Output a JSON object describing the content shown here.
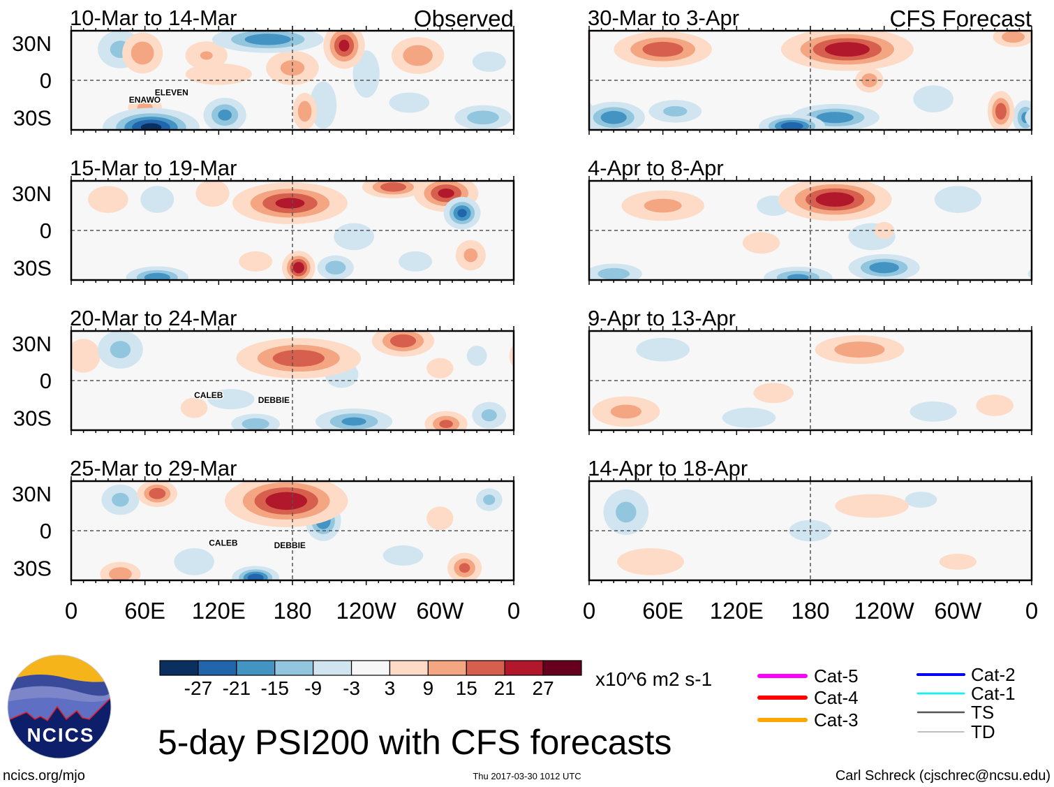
{
  "chart_data": {
    "type": "heatmap",
    "title": "5-day PSI200 with CFS forecasts",
    "units": "x10^6 m2 s-1",
    "column_headers": [
      "Observed",
      "CFS Forecast"
    ],
    "x_ticks": [
      "0",
      "60E",
      "120E",
      "180",
      "120W",
      "60W",
      "0"
    ],
    "y_ticks": [
      "30N",
      "0",
      "30S"
    ],
    "lon_range": [
      0,
      360
    ],
    "lat_range": [
      -40,
      40
    ],
    "colorbar": {
      "labels": [
        "-27",
        "-21",
        "-15",
        "-9",
        "-3",
        "3",
        "9",
        "15",
        "21",
        "27"
      ],
      "colors": [
        "#0b305f",
        "#2166ac",
        "#4393c3",
        "#92c5de",
        "#d1e5f0",
        "#f7f7f7",
        "#fddbc7",
        "#f4a582",
        "#d6604d",
        "#b2182b",
        "#67001f"
      ]
    },
    "panels": [
      {
        "title": "10-Mar to 14-Mar",
        "column": 0,
        "row": 0,
        "storms": [
          {
            "name": "ELEVEN",
            "lon": 68,
            "lat": -12
          },
          {
            "name": "ENAWO",
            "lon": 47,
            "lat": -18
          }
        ],
        "anomalies": [
          [
            40,
            25,
            -12,
            12,
            10
          ],
          [
            58,
            22,
            15,
            10,
            10
          ],
          [
            110,
            20,
            10,
            12,
            8
          ],
          [
            160,
            33,
            -21,
            25,
            6
          ],
          [
            180,
            10,
            12,
            14,
            9
          ],
          [
            222,
            28,
            24,
            9,
            10
          ],
          [
            240,
            5,
            -9,
            8,
            14
          ],
          [
            282,
            20,
            15,
            13,
            9
          ],
          [
            340,
            15,
            -9,
            10,
            6
          ],
          [
            65,
            -38,
            -30,
            20,
            8
          ],
          [
            125,
            -28,
            -18,
            10,
            8
          ],
          [
            60,
            -22,
            12,
            9,
            6
          ],
          [
            190,
            -25,
            15,
            6,
            9
          ],
          [
            205,
            -20,
            -9,
            8,
            14
          ],
          [
            335,
            -30,
            -15,
            14,
            6
          ],
          [
            275,
            -18,
            -9,
            12,
            6
          ],
          [
            120,
            5,
            6,
            25,
            8
          ]
        ]
      },
      {
        "title": "15-Mar to 19-Mar",
        "column": 0,
        "row": 1,
        "storms": [],
        "anomalies": [
          [
            30,
            25,
            9,
            12,
            8
          ],
          [
            70,
            25,
            -9,
            10,
            8
          ],
          [
            178,
            22,
            24,
            25,
            9
          ],
          [
            262,
            35,
            21,
            14,
            5
          ],
          [
            305,
            30,
            24,
            14,
            8
          ],
          [
            318,
            14,
            -24,
            8,
            7
          ],
          [
            230,
            -5,
            -9,
            12,
            8
          ],
          [
            185,
            -30,
            27,
            7,
            7
          ],
          [
            215,
            -30,
            -15,
            9,
            6
          ],
          [
            70,
            -38,
            -21,
            14,
            5
          ],
          [
            150,
            -25,
            9,
            10,
            6
          ],
          [
            280,
            -25,
            -9,
            10,
            6
          ],
          [
            325,
            -20,
            12,
            8,
            8
          ],
          [
            115,
            30,
            9,
            10,
            8
          ]
        ]
      },
      {
        "title": "20-Mar to 24-Mar",
        "column": 0,
        "row": 2,
        "storms": [
          {
            "name": "CALEB",
            "lon": 100,
            "lat": -14
          },
          {
            "name": "DEBBIE",
            "lon": 152,
            "lat": -18
          }
        ],
        "anomalies": [
          [
            10,
            20,
            9,
            10,
            10
          ],
          [
            40,
            25,
            -12,
            12,
            10
          ],
          [
            185,
            18,
            21,
            28,
            9
          ],
          [
            270,
            32,
            21,
            14,
            7
          ],
          [
            220,
            5,
            -9,
            10,
            8
          ],
          [
            100,
            -22,
            9,
            8,
            6
          ],
          [
            130,
            -15,
            -9,
            14,
            6
          ],
          [
            230,
            -33,
            -18,
            18,
            6
          ],
          [
            150,
            -35,
            -15,
            12,
            5
          ],
          [
            305,
            -35,
            18,
            10,
            6
          ],
          [
            340,
            -28,
            -12,
            9,
            7
          ],
          [
            330,
            20,
            -9,
            6,
            6
          ],
          [
            300,
            10,
            9,
            8,
            6
          ]
        ]
      },
      {
        "title": "25-Mar to 29-Mar",
        "column": 0,
        "row": 3,
        "storms": [
          {
            "name": "CALEB",
            "lon": 112,
            "lat": -12
          },
          {
            "name": "DEBBIE",
            "lon": 165,
            "lat": -14
          }
        ],
        "anomalies": [
          [
            70,
            30,
            21,
            9,
            6
          ],
          [
            40,
            25,
            -12,
            10,
            8
          ],
          [
            175,
            24,
            27,
            26,
            11
          ],
          [
            205,
            8,
            -21,
            8,
            9
          ],
          [
            300,
            10,
            9,
            8,
            7
          ],
          [
            150,
            -38,
            -27,
            10,
            5
          ],
          [
            40,
            -35,
            15,
            10,
            6
          ],
          [
            320,
            -30,
            18,
            8,
            7
          ],
          [
            270,
            -20,
            -9,
            12,
            6
          ],
          [
            100,
            -25,
            -9,
            12,
            8
          ],
          [
            340,
            25,
            -12,
            7,
            6
          ]
        ]
      },
      {
        "title": "30-Mar to 3-Apr",
        "column": 1,
        "row": 0,
        "storms": [],
        "anomalies": [
          [
            60,
            25,
            21,
            22,
            8
          ],
          [
            210,
            25,
            27,
            28,
            9
          ],
          [
            228,
            0,
            15,
            7,
            6
          ],
          [
            70,
            -25,
            -12,
            14,
            6
          ],
          [
            200,
            -30,
            -21,
            20,
            6
          ],
          [
            165,
            -37,
            -27,
            14,
            5
          ],
          [
            335,
            -25,
            21,
            6,
            9
          ],
          [
            355,
            -30,
            -18,
            6,
            8
          ],
          [
            345,
            35,
            15,
            10,
            5
          ],
          [
            20,
            -30,
            -21,
            14,
            7
          ],
          [
            280,
            -15,
            -9,
            12,
            8
          ],
          [
            250,
            25,
            -6,
            6,
            8
          ]
        ]
      },
      {
        "title": "4-Apr to 8-Apr",
        "column": 1,
        "row": 1,
        "storms": [],
        "anomalies": [
          [
            200,
            25,
            27,
            24,
            9
          ],
          [
            60,
            20,
            12,
            22,
            8
          ],
          [
            150,
            20,
            -9,
            10,
            6
          ],
          [
            230,
            -5,
            -9,
            14,
            8
          ],
          [
            170,
            -38,
            -18,
            16,
            5
          ],
          [
            240,
            -30,
            -21,
            16,
            6
          ],
          [
            20,
            -35,
            -15,
            14,
            5
          ],
          [
            140,
            -10,
            6,
            14,
            8
          ],
          [
            300,
            25,
            -9,
            14,
            8
          ],
          [
            240,
            0,
            9,
            6,
            5
          ]
        ]
      },
      {
        "title": "9-Apr to 13-Apr",
        "column": 1,
        "row": 2,
        "storms": [],
        "anomalies": [
          [
            220,
            25,
            15,
            22,
            7
          ],
          [
            150,
            -10,
            9,
            12,
            6
          ],
          [
            30,
            -25,
            12,
            18,
            8
          ],
          [
            130,
            -30,
            -9,
            16,
            6
          ],
          [
            280,
            -25,
            -9,
            14,
            6
          ],
          [
            60,
            25,
            -9,
            16,
            7
          ],
          [
            330,
            -20,
            6,
            14,
            8
          ]
        ]
      },
      {
        "title": "14-Apr to 18-Apr",
        "column": 1,
        "row": 3,
        "storms": [],
        "anomalies": [
          [
            30,
            15,
            -12,
            12,
            12
          ],
          [
            230,
            20,
            9,
            22,
            7
          ],
          [
            50,
            -25,
            9,
            20,
            8
          ],
          [
            180,
            0,
            -6,
            16,
            8
          ],
          [
            270,
            25,
            -6,
            12,
            6
          ],
          [
            300,
            -25,
            6,
            14,
            6
          ]
        ]
      }
    ]
  },
  "legend": {
    "tracks": [
      {
        "label": "Cat-5",
        "color": "#ff00ff"
      },
      {
        "label": "Cat-4",
        "color": "#ff0000"
      },
      {
        "label": "Cat-3",
        "color": "#ffa500"
      },
      {
        "label": "Cat-2",
        "color": "#0000ff"
      },
      {
        "label": "Cat-1",
        "color": "#22eeee"
      },
      {
        "label": "TS",
        "color": "#555555"
      },
      {
        "label": "TD",
        "color": "#aaaaaa"
      }
    ]
  },
  "footer": {
    "logo_text": "NCICS",
    "url": "ncics.org/mjo",
    "timestamp": "Thu 2017-03-30 1012 UTC",
    "credit": "Carl Schreck (cjschrec@ncsu.edu)"
  }
}
